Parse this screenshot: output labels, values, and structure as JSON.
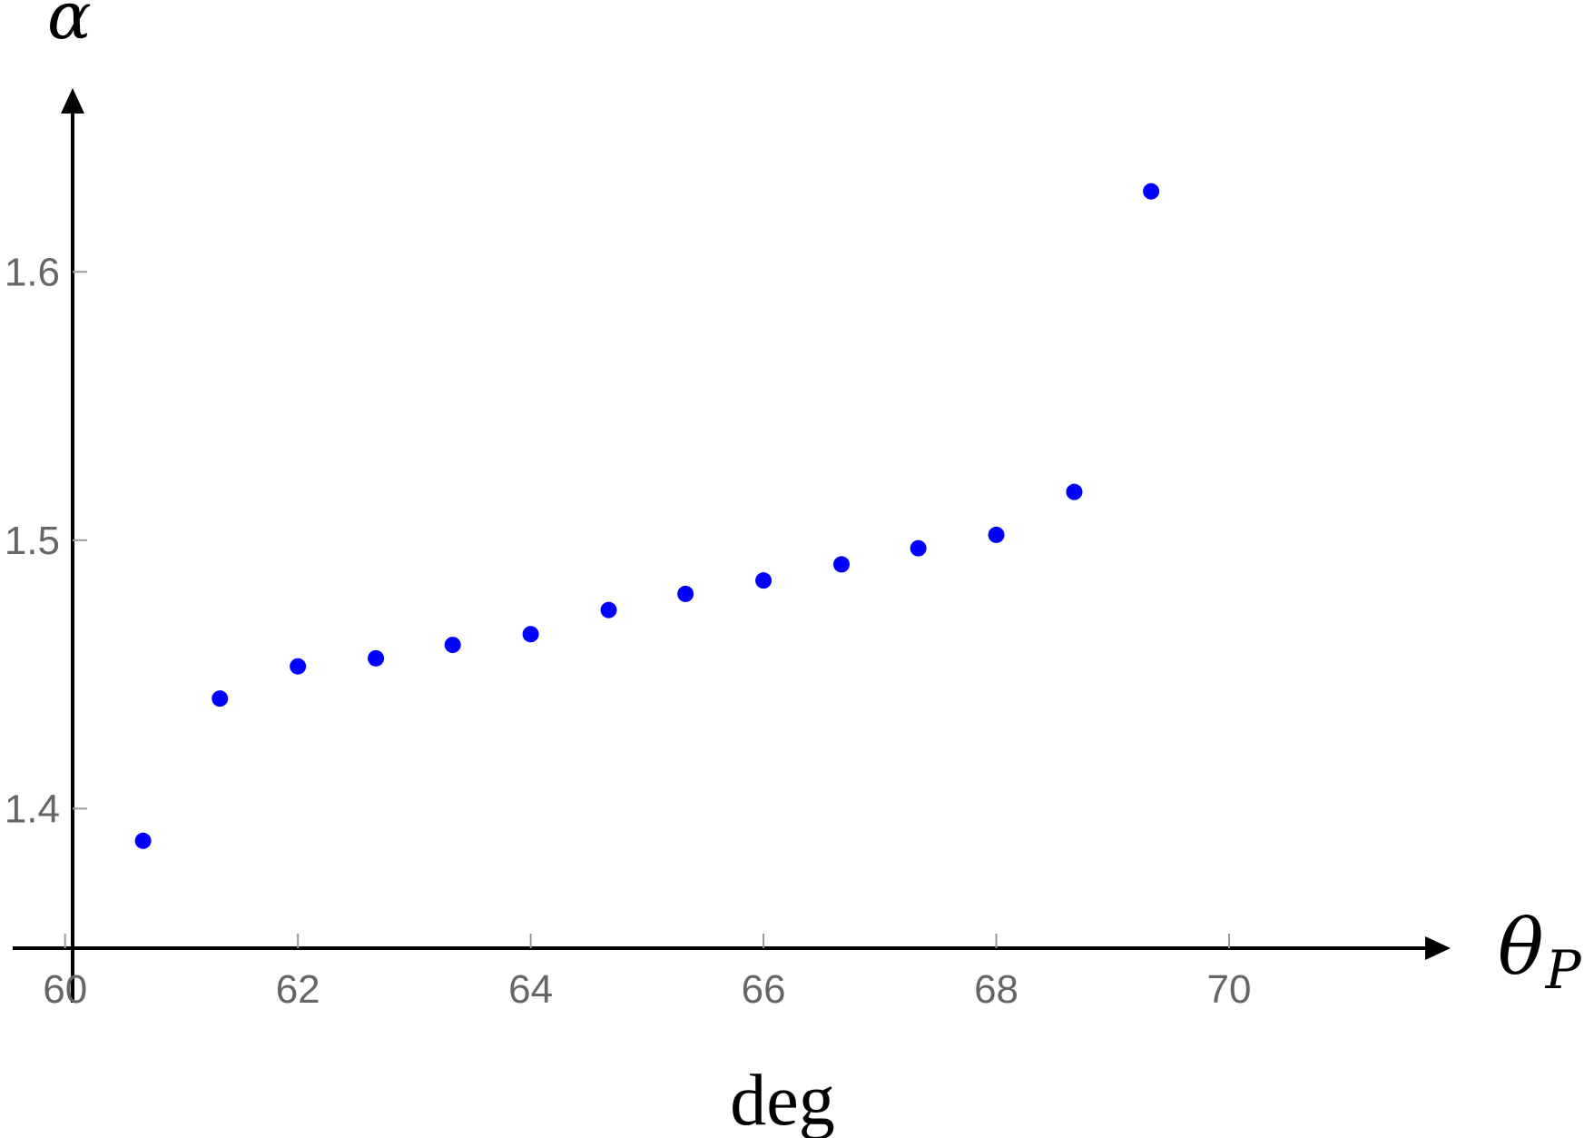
{
  "chart_data": {
    "type": "scatter",
    "title": "",
    "xlabel": "θ",
    "xlabel_sub": "P",
    "ylabel": "α",
    "x_unit": "deg",
    "xlim": [
      59.55,
      71.7
    ],
    "ylim": [
      1.348,
      1.66
    ],
    "x_ticks": [
      "60",
      "62",
      "64",
      "66",
      "68",
      "70"
    ],
    "y_ticks": [
      "1.4",
      "1.5",
      "1.6"
    ],
    "grid": false,
    "series": [
      {
        "color": "#0000ff",
        "x": [
          60.67,
          61.33,
          62.0,
          62.67,
          63.33,
          64.0,
          64.67,
          65.33,
          66.0,
          66.67,
          67.33,
          68.0,
          68.67,
          69.33
        ],
        "y": [
          1.388,
          1.441,
          1.453,
          1.456,
          1.461,
          1.465,
          1.474,
          1.48,
          1.485,
          1.491,
          1.497,
          1.502,
          1.518,
          1.63
        ]
      }
    ]
  }
}
